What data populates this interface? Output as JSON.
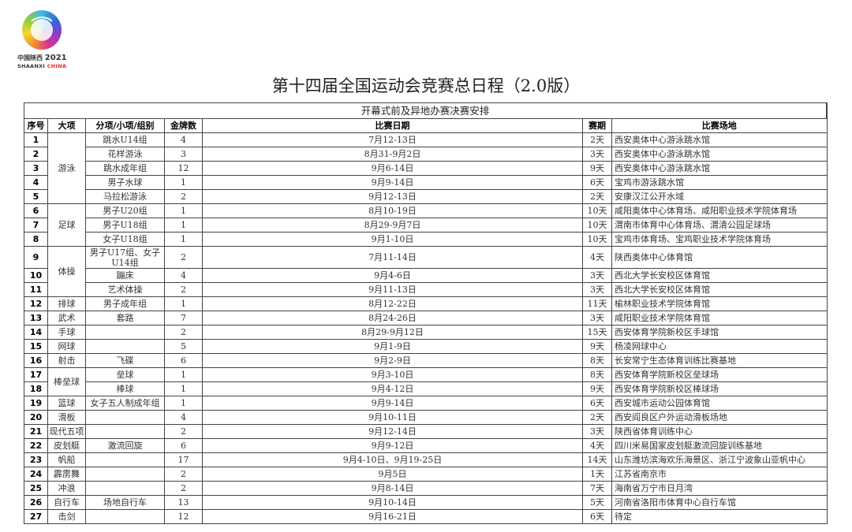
{
  "logo": {
    "cn": "中国陕西",
    "year": "2021",
    "en": "SHAANXI",
    "en2": "CHINA"
  },
  "title": "第十四届全国运动会竞赛总日程（2.0版）",
  "section": "开幕式前及异地办赛决赛安排",
  "headers": [
    "序号",
    "大项",
    "分项/小项/组别",
    "金牌数",
    "比赛日期",
    "赛期",
    "比赛场地"
  ],
  "rows": [
    {
      "no": "1",
      "category": "游泳",
      "sub": "跳水U14组",
      "gold": "4",
      "date": "7月12-13日",
      "days": "2天",
      "venue": "西安奥体中心游泳跳水馆"
    },
    {
      "no": "2",
      "sub": "花样游泳",
      "gold": "3",
      "date": "8月31-9月2日",
      "days": "3天",
      "venue": "西安奥体中心游泳跳水馆"
    },
    {
      "no": "3",
      "sub": "跳水成年组",
      "gold": "12",
      "date": "9月6-14日",
      "days": "9天",
      "venue": "西安奥体中心游泳跳水馆"
    },
    {
      "no": "4",
      "sub": "男子水球",
      "gold": "1",
      "date": "9月9-14日",
      "days": "6天",
      "venue": "宝鸡市游泳跳水馆"
    },
    {
      "no": "5",
      "sub": "马拉松游泳",
      "gold": "2",
      "date": "9月12-13日",
      "days": "2天",
      "venue": "安康汉江公开水域"
    },
    {
      "no": "6",
      "category": "足球",
      "sub": "男子U20组",
      "gold": "1",
      "date": "8月10-19日",
      "days": "10天",
      "venue": "咸阳奥体中心体育场、咸阳职业技术学院体育场"
    },
    {
      "no": "7",
      "sub": "男子U18组",
      "gold": "1",
      "date": "8月29-9月7日",
      "days": "10天",
      "venue": "渭南市体育中心体育场、渭清公园足球场"
    },
    {
      "no": "8",
      "sub": "女子U18组",
      "gold": "1",
      "date": "9月1-10日",
      "days": "10天",
      "venue": "宝鸡市体育场、宝鸡职业技术学院体育场"
    },
    {
      "no": "9",
      "category": "体操",
      "sub": "男子U17组、女子U14组",
      "gold": "2",
      "date": "7月11-14日",
      "days": "4天",
      "venue": "陕西奥体中心体育馆"
    },
    {
      "no": "10",
      "sub": "蹦床",
      "gold": "4",
      "date": "9月4-6日",
      "days": "3天",
      "venue": "西北大学长安校区体育馆"
    },
    {
      "no": "11",
      "sub": "艺术体操",
      "gold": "2",
      "date": "9月11-13日",
      "days": "3天",
      "venue": "西北大学长安校区体育馆"
    },
    {
      "no": "12",
      "category": "排球",
      "sub": "男子成年组",
      "gold": "1",
      "date": "8月12-22日",
      "days": "11天",
      "venue": "榆林职业技术学院体育馆"
    },
    {
      "no": "13",
      "category": "武术",
      "sub": "套路",
      "gold": "7",
      "date": "8月24-26日",
      "days": "3天",
      "venue": "咸阳职业技术学院体育馆"
    },
    {
      "no": "14",
      "category": "手球",
      "sub": "",
      "gold": "2",
      "date": "8月29-9月12日",
      "days": "15天",
      "venue": "西安体育学院新校区手球馆"
    },
    {
      "no": "15",
      "category": "网球",
      "sub": "",
      "gold": "5",
      "date": "9月1-9日",
      "days": "9天",
      "venue": "杨凌网球中心"
    },
    {
      "no": "16",
      "category": "射击",
      "sub": "飞碟",
      "gold": "6",
      "date": "9月2-9日",
      "days": "8天",
      "venue": "长安常宁生态体育训练比赛基地"
    },
    {
      "no": "17",
      "category": "棒垒球",
      "sub": "垒球",
      "gold": "1",
      "date": "9月3-10日",
      "days": "8天",
      "venue": "西安体育学院新校区垒球场"
    },
    {
      "no": "18",
      "sub": "棒球",
      "gold": "1",
      "date": "9月4-12日",
      "days": "9天",
      "venue": "西安体育学院新校区棒球场"
    },
    {
      "no": "19",
      "category": "篮球",
      "sub": "女子五人制成年组",
      "gold": "1",
      "date": "9月9-14日",
      "days": "6天",
      "venue": "西安城市运动公园体育馆"
    },
    {
      "no": "20",
      "category": "滑板",
      "sub": "",
      "gold": "4",
      "date": "9月10-11日",
      "days": "2天",
      "venue": "西安阎良区户外运动滑板场地"
    },
    {
      "no": "21",
      "category": "现代五项",
      "sub": "",
      "gold": "2",
      "date": "9月12-14日",
      "days": "3天",
      "venue": "陕西省体育训练中心"
    },
    {
      "no": "22",
      "category": "皮划艇",
      "sub": "激流回旋",
      "gold": "6",
      "date": "9月9-12日",
      "days": "4天",
      "venue": "四川米易国家皮划艇激流回旋训练基地"
    },
    {
      "no": "23",
      "category": "帆船",
      "sub": "",
      "gold": "17",
      "date": "9月4-10日、9月19-25日",
      "days": "14天",
      "venue": "山东潍坊滨海欢乐海景区、浙江宁波象山亚帆中心"
    },
    {
      "no": "24",
      "category": "霹雳舞",
      "sub": "",
      "gold": "2",
      "date": "9月5日",
      "days": "1天",
      "venue": "江苏省南京市"
    },
    {
      "no": "25",
      "category": "冲浪",
      "sub": "",
      "gold": "2",
      "date": "9月8-14日",
      "days": "7天",
      "venue": "海南省万宁市日月湾"
    },
    {
      "no": "26",
      "category": "自行车",
      "sub": "场地自行车",
      "gold": "13",
      "date": "9月10-14日",
      "days": "5天",
      "venue": "河南省洛阳市体育中心自行车馆"
    },
    {
      "no": "27",
      "category": "击剑",
      "sub": "",
      "gold": "12",
      "date": "9月16-21日",
      "days": "6天",
      "venue": "待定"
    }
  ]
}
